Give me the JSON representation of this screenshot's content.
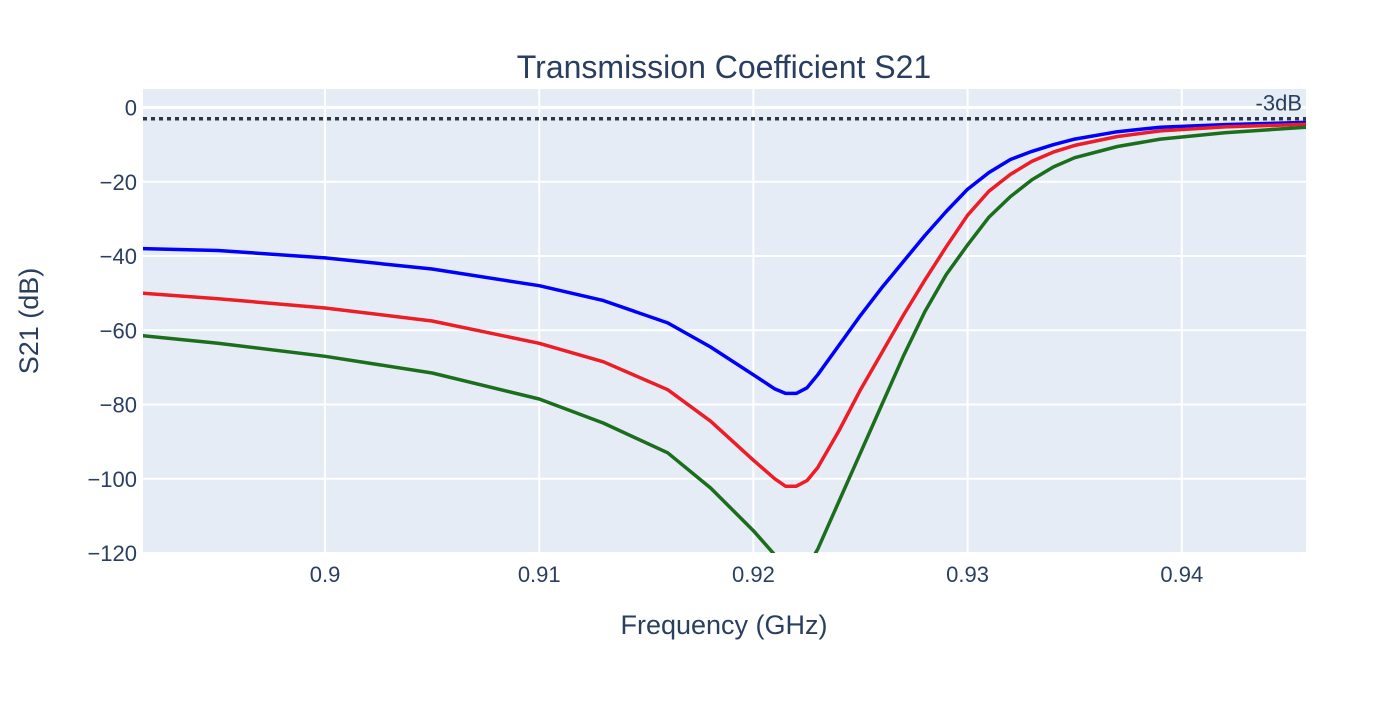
{
  "chart_data": {
    "type": "line",
    "title": "Transmission Coefficient S21",
    "xlabel": "Frequency (GHz)",
    "ylabel": "S21 (dB)",
    "xlim": [
      0.8915,
      0.9458
    ],
    "ylim": [
      -120,
      5
    ],
    "xticks": [
      0.9,
      0.91,
      0.92,
      0.93,
      0.94
    ],
    "xtick_labels": [
      "0.9",
      "0.91",
      "0.92",
      "0.93",
      "0.94"
    ],
    "yticks": [
      0,
      -20,
      -40,
      -60,
      -80,
      -100,
      -120
    ],
    "ytick_labels": [
      "0",
      "−20",
      "−40",
      "−60",
      "−80",
      "−100",
      "−120"
    ],
    "grid": true,
    "legend": false,
    "hline": {
      "y": -3,
      "label": "-3dB",
      "color": "#2f3640",
      "dash": "dotted"
    },
    "series": [
      {
        "color": "#0000ff",
        "points": [
          [
            0.8915,
            -38
          ],
          [
            0.895,
            -38.5
          ],
          [
            0.9,
            -40.5
          ],
          [
            0.905,
            -43.5
          ],
          [
            0.91,
            -48
          ],
          [
            0.913,
            -52
          ],
          [
            0.916,
            -58
          ],
          [
            0.918,
            -64.5
          ],
          [
            0.92,
            -72
          ],
          [
            0.921,
            -75.8
          ],
          [
            0.9215,
            -77
          ],
          [
            0.922,
            -77
          ],
          [
            0.9225,
            -75.5
          ],
          [
            0.923,
            -72
          ],
          [
            0.924,
            -64
          ],
          [
            0.925,
            -56
          ],
          [
            0.926,
            -48.5
          ],
          [
            0.927,
            -41.5
          ],
          [
            0.928,
            -34.5
          ],
          [
            0.929,
            -28
          ],
          [
            0.93,
            -22
          ],
          [
            0.931,
            -17.5
          ],
          [
            0.932,
            -14
          ],
          [
            0.933,
            -11.8
          ],
          [
            0.934,
            -10
          ],
          [
            0.935,
            -8.5
          ],
          [
            0.937,
            -6.5
          ],
          [
            0.939,
            -5.3
          ],
          [
            0.942,
            -4.6
          ],
          [
            0.9458,
            -4
          ]
        ]
      },
      {
        "color": "#ee1c25",
        "points": [
          [
            0.8915,
            -50
          ],
          [
            0.895,
            -51.5
          ],
          [
            0.9,
            -54
          ],
          [
            0.905,
            -57.5
          ],
          [
            0.91,
            -63.5
          ],
          [
            0.913,
            -68.5
          ],
          [
            0.916,
            -76
          ],
          [
            0.918,
            -84.5
          ],
          [
            0.92,
            -95
          ],
          [
            0.921,
            -100
          ],
          [
            0.9215,
            -102
          ],
          [
            0.922,
            -102
          ],
          [
            0.9225,
            -100.5
          ],
          [
            0.923,
            -97
          ],
          [
            0.924,
            -87
          ],
          [
            0.925,
            -76
          ],
          [
            0.926,
            -66
          ],
          [
            0.927,
            -56
          ],
          [
            0.928,
            -46.5
          ],
          [
            0.929,
            -37.5
          ],
          [
            0.93,
            -29
          ],
          [
            0.931,
            -22.5
          ],
          [
            0.932,
            -18
          ],
          [
            0.933,
            -14.5
          ],
          [
            0.934,
            -12
          ],
          [
            0.935,
            -10.2
          ],
          [
            0.937,
            -7.8
          ],
          [
            0.939,
            -6.3
          ],
          [
            0.942,
            -5.2
          ],
          [
            0.9458,
            -4.5
          ]
        ]
      },
      {
        "color": "#1b6e1b",
        "points": [
          [
            0.8915,
            -61.5
          ],
          [
            0.895,
            -63.5
          ],
          [
            0.9,
            -67
          ],
          [
            0.905,
            -71.5
          ],
          [
            0.91,
            -78.5
          ],
          [
            0.913,
            -85
          ],
          [
            0.916,
            -93
          ],
          [
            0.918,
            -102.5
          ],
          [
            0.92,
            -114
          ],
          [
            0.921,
            -120.5
          ],
          [
            0.9215,
            -124
          ],
          [
            0.922,
            -126
          ],
          [
            0.9225,
            -124
          ],
          [
            0.923,
            -119
          ],
          [
            0.924,
            -106
          ],
          [
            0.925,
            -93
          ],
          [
            0.926,
            -80
          ],
          [
            0.927,
            -67
          ],
          [
            0.928,
            -55
          ],
          [
            0.929,
            -45
          ],
          [
            0.93,
            -37
          ],
          [
            0.931,
            -29.5
          ],
          [
            0.932,
            -24
          ],
          [
            0.933,
            -19.5
          ],
          [
            0.934,
            -16
          ],
          [
            0.935,
            -13.5
          ],
          [
            0.937,
            -10.5
          ],
          [
            0.939,
            -8.5
          ],
          [
            0.942,
            -6.8
          ],
          [
            0.9458,
            -5.3
          ]
        ]
      }
    ]
  }
}
